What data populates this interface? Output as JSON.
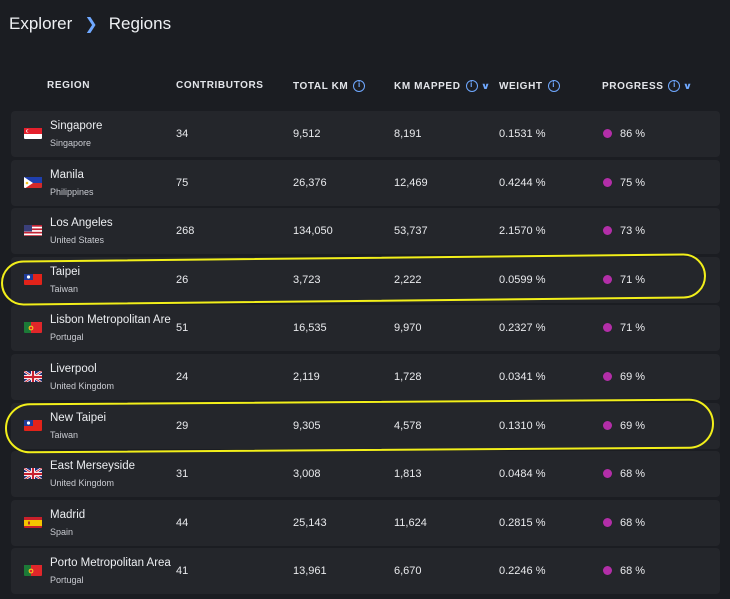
{
  "breadcrumb": {
    "parent": "Explorer",
    "current": "Regions"
  },
  "table": {
    "headers": {
      "region": "REGION",
      "contributors": "CONTRIBUTORS",
      "total_km": "TOTAL KM",
      "km_mapped": "KM MAPPED",
      "weight": "WEIGHT",
      "progress": "PROGRESS"
    },
    "rows": [
      {
        "name": "Singapore",
        "country": "Singapore",
        "flag": "singapore-flag-icon",
        "contributors": "34",
        "total_km": "9,512",
        "km_mapped": "8,191",
        "weight": "0.1531 %",
        "progress": "86 %"
      },
      {
        "name": "Manila",
        "country": "Philippines",
        "flag": "philippines-flag-icon",
        "contributors": "75",
        "total_km": "26,376",
        "km_mapped": "12,469",
        "weight": "0.4244 %",
        "progress": "75 %"
      },
      {
        "name": "Los Angeles",
        "country": "United States",
        "flag": "united-states-flag-icon",
        "contributors": "268",
        "total_km": "134,050",
        "km_mapped": "53,737",
        "weight": "2.1570 %",
        "progress": "73 %"
      },
      {
        "name": "Taipei",
        "country": "Taiwan",
        "flag": "taiwan-flag-icon",
        "contributors": "26",
        "total_km": "3,723",
        "km_mapped": "2,222",
        "weight": "0.0599 %",
        "progress": "71 %"
      },
      {
        "name": "Lisbon Metropolitan Are",
        "country": "Portugal",
        "flag": "portugal-flag-icon",
        "contributors": "51",
        "total_km": "16,535",
        "km_mapped": "9,970",
        "weight": "0.2327 %",
        "progress": "71 %"
      },
      {
        "name": "Liverpool",
        "country": "United Kingdom",
        "flag": "united-kingdom-flag-icon",
        "contributors": "24",
        "total_km": "2,119",
        "km_mapped": "1,728",
        "weight": "0.0341 %",
        "progress": "69 %"
      },
      {
        "name": "New Taipei",
        "country": "Taiwan",
        "flag": "taiwan-flag-icon",
        "contributors": "29",
        "total_km": "9,305",
        "km_mapped": "4,578",
        "weight": "0.1310 %",
        "progress": "69 %"
      },
      {
        "name": "East Merseyside",
        "country": "United Kingdom",
        "flag": "united-kingdom-flag-icon",
        "contributors": "31",
        "total_km": "3,008",
        "km_mapped": "1,813",
        "weight": "0.0484 %",
        "progress": "68 %"
      },
      {
        "name": "Madrid",
        "country": "Spain",
        "flag": "spain-flag-icon",
        "contributors": "44",
        "total_km": "25,143",
        "km_mapped": "11,624",
        "weight": "0.2815 %",
        "progress": "68 %"
      },
      {
        "name": "Porto Metropolitan Area",
        "country": "Portugal",
        "flag": "portugal-flag-icon",
        "contributors": "41",
        "total_km": "13,961",
        "km_mapped": "6,670",
        "weight": "0.2246 %",
        "progress": "68 %"
      }
    ]
  },
  "colors": {
    "accent": "#6fa8ff",
    "progress_dot": "#b32ea8",
    "annotation": "#f2ef1a",
    "row_bg": "#24262b",
    "page_bg": "#1b1d22"
  }
}
